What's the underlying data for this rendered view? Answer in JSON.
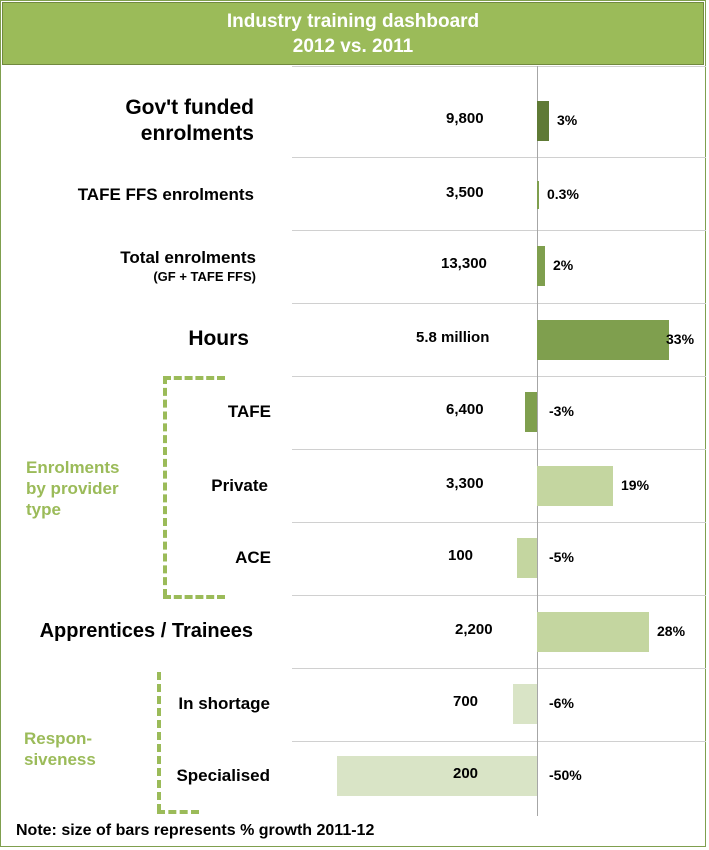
{
  "title_line1": "Industry training dashboard",
  "title_line2": "2012 vs. 2011",
  "note": "Note: size of bars represents % growth 2011-12",
  "groups": {
    "provider": "Enrolments by provider type",
    "responsiveness": "Respon- siveness"
  },
  "colors": {
    "header": "#9bbb59",
    "dark_bar": "#5f7a35",
    "mid_bar": "#7f9f4e",
    "light_bar": "#c4d6a0",
    "pale_bar": "#d9e4c6"
  },
  "chart_data": {
    "type": "bar",
    "title": "Industry training dashboard 2012 vs. 2011",
    "categories": [
      "Gov't funded enrolments",
      "TAFE FFS enrolments",
      "Total enrolments (GF + TAFE FFS)",
      "Hours",
      "TAFE",
      "Private",
      "ACE",
      "Apprentices / Trainees",
      "In shortage",
      "Specialised"
    ],
    "rows": [
      {
        "label": "Gov't funded enrolments",
        "sublabel": "",
        "value": "9,800",
        "growth": 3,
        "growth_label": "3%"
      },
      {
        "label": "TAFE FFS enrolments",
        "sublabel": "",
        "value": "3,500",
        "growth": 0.3,
        "growth_label": "0.3%"
      },
      {
        "label": "Total enrolments",
        "sublabel": "(GF + TAFE FFS)",
        "value": "13,300",
        "growth": 2,
        "growth_label": "2%"
      },
      {
        "label": "Hours",
        "sublabel": "",
        "value": "5.8 million",
        "growth": 33,
        "growth_label": "33%"
      },
      {
        "label": "TAFE",
        "sublabel": "",
        "value": "6,400",
        "growth": -3,
        "growth_label": "-3%"
      },
      {
        "label": "Private",
        "sublabel": "",
        "value": "3,300",
        "growth": 19,
        "growth_label": "19%"
      },
      {
        "label": "ACE",
        "sublabel": "",
        "value": "100",
        "growth": -5,
        "growth_label": "-5%"
      },
      {
        "label": "Apprentices / Trainees",
        "sublabel": "",
        "value": "2,200",
        "growth": 28,
        "growth_label": "28%"
      },
      {
        "label": "In shortage",
        "sublabel": "",
        "value": "700",
        "growth": -6,
        "growth_label": "-6%"
      },
      {
        "label": "Specialised",
        "sublabel": "",
        "value": "200",
        "growth": -50,
        "growth_label": "-50%"
      }
    ]
  }
}
